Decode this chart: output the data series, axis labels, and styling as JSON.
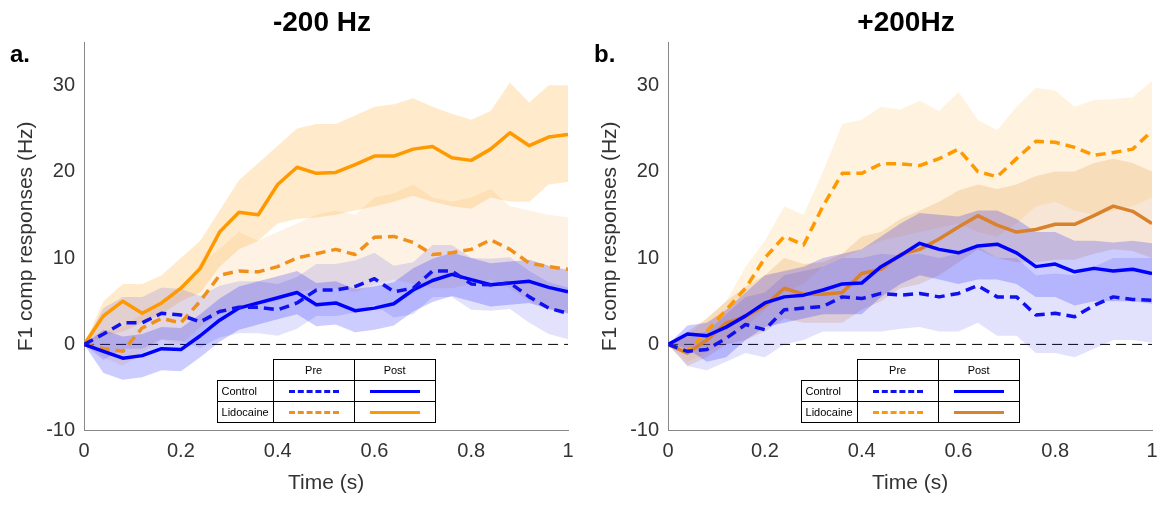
{
  "chart_data": [
    {
      "type": "line",
      "title": "-200 Hz",
      "xlabel": "Time (s)",
      "ylabel": "F1 comp responses (Hz)",
      "annotations": [
        "a.",
        "Pre",
        "Post",
        "Control",
        "Lidocaine"
      ],
      "xlim": [
        0,
        1
      ],
      "xticks": [
        0,
        0.2,
        0.4,
        0.6,
        0.8,
        1
      ],
      "ylim": [
        -10,
        35
      ],
      "yticks": [
        -10,
        0,
        10,
        20,
        30
      ],
      "grid": false,
      "marker": "none",
      "ref_lines": [
        {
          "axis": "y",
          "value": 0,
          "color": "#000000",
          "line_style": "dashed"
        }
      ],
      "x": [
        0,
        0.04,
        0.08,
        0.12,
        0.16,
        0.2,
        0.24,
        0.28,
        0.32,
        0.36,
        0.4,
        0.44,
        0.48,
        0.52,
        0.56,
        0.6,
        0.64,
        0.68,
        0.72,
        0.76,
        0.8,
        0.84,
        0.88,
        0.92,
        0.96,
        1
      ],
      "series": [
        {
          "color": "#1010f0",
          "line_style": "dashed",
          "values": [
            0,
            1.2,
            2.5,
            2.5,
            3.6,
            3.4,
            2.6,
            3.8,
            4.3,
            4.3,
            4,
            4.8,
            6.3,
            6.3,
            6.7,
            7.6,
            6.1,
            6.5,
            8.5,
            8.5,
            7,
            6.9,
            7.1,
            5.5,
            4.2,
            3.6
          ],
          "upper": [
            0,
            4.2,
            5.5,
            5.5,
            6.6,
            6.4,
            5.6,
            6.8,
            7.3,
            7.3,
            7,
            7.8,
            9.3,
            9.3,
            9.7,
            10.6,
            9.1,
            9.5,
            11.5,
            11.5,
            10,
            9.9,
            10.1,
            8.5,
            7.2,
            6.6
          ],
          "lower": [
            0,
            -1.8,
            -0.5,
            -0.5,
            0.6,
            0.4,
            -0.4,
            0.8,
            1.3,
            1.3,
            1,
            1.8,
            3.3,
            3.3,
            3.7,
            4.6,
            3.1,
            3.5,
            5.5,
            5.5,
            4,
            3.9,
            4.1,
            2.5,
            1.2,
            0.6
          ]
        },
        {
          "color": "#0000ff",
          "line_style": "solid",
          "values": [
            0,
            -0.8,
            -1.6,
            -1.3,
            -0.5,
            -0.6,
            1,
            2.8,
            4.2,
            4.8,
            5.4,
            6,
            4.6,
            4.8,
            3.9,
            4.2,
            4.7,
            6.3,
            7.4,
            8.1,
            7.5,
            6.9,
            7.1,
            7.3,
            6.6,
            6.1
          ],
          "upper": [
            0,
            1.7,
            0.9,
            1.2,
            2,
            1.9,
            3.5,
            5.3,
            6.7,
            7.3,
            7.9,
            8.5,
            7.1,
            7.3,
            6.4,
            6.7,
            7.2,
            8.8,
            9.9,
            10.6,
            10,
            9.4,
            9.6,
            9.8,
            9.1,
            8.6
          ],
          "lower": [
            0,
            -3.3,
            -4.1,
            -3.8,
            -3,
            -3.1,
            -1.5,
            0.3,
            1.7,
            2.3,
            2.9,
            3.5,
            2.1,
            2.3,
            1.4,
            1.7,
            2.2,
            3.8,
            4.9,
            5.6,
            5,
            4.4,
            4.6,
            4.8,
            4.1,
            3.6
          ]
        },
        {
          "color": "#f0901c",
          "line_style": "dashed",
          "values": [
            0,
            -0.5,
            -0.8,
            1.9,
            3,
            2.5,
            5,
            8,
            8.5,
            8.4,
            9,
            10,
            10.5,
            11,
            10.4,
            12.4,
            12.5,
            11.8,
            10.4,
            10.6,
            11,
            12.1,
            11,
            9.4,
            9,
            8.7
          ],
          "upper": [
            0,
            1.5,
            2,
            3.5,
            5,
            6,
            9.5,
            11,
            13,
            12,
            13,
            14,
            15,
            15.5,
            15,
            17,
            17.5,
            18.5,
            17,
            16.5,
            17,
            18,
            16,
            15.5,
            15,
            14.7
          ],
          "lower": [
            0,
            -1.5,
            -2.5,
            -1,
            0.5,
            0,
            2,
            3.5,
            4,
            4.5,
            5,
            6,
            6.5,
            6.5,
            6,
            7,
            7.5,
            7,
            6.5,
            6.5,
            7,
            7.5,
            6.5,
            5,
            4,
            3.5
          ]
        },
        {
          "color": "#ff9900",
          "line_style": "solid",
          "values": [
            0,
            3.3,
            5,
            3.6,
            4.8,
            6.5,
            8.8,
            13,
            15.3,
            15,
            18.5,
            20.5,
            19.8,
            19.9,
            20.8,
            21.8,
            21.8,
            22.6,
            22.9,
            21.6,
            21.3,
            22.6,
            24.5,
            23,
            24,
            24.3
          ],
          "upper": [
            0,
            5,
            7,
            7,
            8,
            10,
            12,
            15.5,
            19,
            21,
            23,
            25,
            25.5,
            25.5,
            26.5,
            27.5,
            27.8,
            28.5,
            27.5,
            26.7,
            26,
            27,
            30.3,
            28,
            30,
            30
          ],
          "lower": [
            0,
            1,
            1.5,
            2.5,
            3.5,
            5,
            6,
            9,
            11,
            12,
            14,
            14.5,
            14.7,
            15,
            15.5,
            16,
            16.5,
            17.2,
            16.5,
            16,
            15.7,
            17,
            16.5,
            16.5,
            18.5,
            18.8
          ]
        }
      ]
    },
    {
      "type": "line",
      "title": "+200Hz",
      "xlabel": "Time (s)",
      "ylabel": "F1 comp responses (Hz)",
      "annotations": [
        "b.",
        "Pre",
        "Post",
        "Control",
        "Lidocaine"
      ],
      "xlim": [
        0,
        1
      ],
      "xticks": [
        0,
        0.2,
        0.4,
        0.6,
        0.8,
        1
      ],
      "ylim": [
        -10,
        35
      ],
      "yticks": [
        -10,
        0,
        10,
        20,
        30
      ],
      "grid": false,
      "marker": "none",
      "ref_lines": [
        {
          "axis": "y",
          "value": 0,
          "color": "#000000",
          "line_style": "dashed"
        }
      ],
      "x": [
        0,
        0.04,
        0.08,
        0.12,
        0.16,
        0.2,
        0.24,
        0.28,
        0.32,
        0.36,
        0.4,
        0.44,
        0.48,
        0.52,
        0.56,
        0.6,
        0.64,
        0.68,
        0.72,
        0.76,
        0.8,
        0.84,
        0.88,
        0.92,
        0.96,
        1
      ],
      "series": [
        {
          "color": "#1010f0",
          "line_style": "dashed",
          "values": [
            0,
            -0.8,
            -0.6,
            0.7,
            2.3,
            1.7,
            4,
            4.2,
            4.4,
            5.5,
            5.3,
            5.9,
            5.7,
            5.9,
            5.5,
            5.9,
            6.8,
            5.5,
            5.5,
            3.4,
            3.6,
            3.2,
            4.5,
            5.5,
            5.2,
            5.1
          ],
          "upper": [
            0,
            1,
            1.5,
            3.5,
            5.5,
            6,
            8,
            8.5,
            9,
            10,
            10,
            10.5,
            10.3,
            10.5,
            10,
            10.5,
            11.3,
            10,
            10,
            8,
            8.2,
            8,
            9,
            10,
            10,
            10
          ],
          "lower": [
            0,
            -2.5,
            -3,
            -2,
            -1,
            -1.5,
            0,
            0.5,
            1.5,
            1.5,
            1.5,
            1.5,
            1.8,
            2,
            1.5,
            1.5,
            2.5,
            1,
            1,
            -1,
            -1,
            -1.5,
            -0.5,
            0.5,
            0.5,
            0.2
          ]
        },
        {
          "color": "#0000ff",
          "line_style": "solid",
          "values": [
            0,
            1.2,
            1,
            2,
            3.3,
            4.8,
            5.5,
            5.7,
            6.3,
            7,
            7.1,
            9,
            10.3,
            11.7,
            11,
            10.6,
            11.4,
            11.6,
            10.6,
            9,
            9.3,
            8.4,
            8.8,
            8.5,
            8.7,
            8.2
          ],
          "upper": [
            0,
            2.2,
            2.5,
            4,
            6,
            8,
            8.5,
            9,
            10,
            10.5,
            11,
            12.5,
            14,
            15.2,
            15,
            14.8,
            15.5,
            15.5,
            14.5,
            13,
            13,
            12,
            12,
            11.8,
            12,
            11.7
          ],
          "lower": [
            0,
            -0.5,
            -2,
            -1.5,
            0.5,
            2,
            2.5,
            3,
            3.5,
            3.5,
            3.5,
            5.5,
            7,
            8,
            7.5,
            7,
            7.5,
            7.5,
            7,
            5.5,
            5.5,
            4.5,
            5,
            5,
            5,
            4.7
          ]
        },
        {
          "color": "#ff9900",
          "line_style": "dashed",
          "values": [
            0,
            -0.8,
            1.5,
            4,
            6.5,
            10,
            12.5,
            11.5,
            16,
            19.8,
            19.8,
            20.9,
            20.9,
            20.7,
            21.5,
            22.6,
            20,
            19.4,
            21.5,
            23.5,
            23.4,
            22.8,
            21.9,
            22.2,
            22.6,
            24.7
          ],
          "upper": [
            0,
            1,
            3,
            5,
            9,
            12,
            16,
            15,
            20,
            25.5,
            26,
            27.5,
            27.2,
            28.2,
            27,
            29.2,
            26,
            24.8,
            27.5,
            29.7,
            29.4,
            27.5,
            28.3,
            28.4,
            28.6,
            30.5
          ],
          "lower": [
            0,
            -2,
            -1,
            0.5,
            2,
            4,
            6,
            7,
            9,
            10,
            11,
            12,
            12.5,
            13,
            13.5,
            14,
            13,
            12.5,
            14,
            16,
            16.5,
            15.5,
            15,
            15.5,
            16,
            17
          ]
        },
        {
          "color": "#d9822b",
          "line_style": "solid",
          "values": [
            0,
            -1,
            0.5,
            2.5,
            3.2,
            4.5,
            6.5,
            5.8,
            5.8,
            6,
            8.2,
            8.7,
            10.4,
            11,
            12.2,
            13.6,
            14.9,
            13.8,
            13,
            13.3,
            13.9,
            13.9,
            14.9,
            16,
            15.4,
            14
          ],
          "upper": [
            0,
            1.5,
            3,
            5,
            6.7,
            8,
            10,
            9.3,
            9.5,
            10.5,
            12.5,
            13,
            14.5,
            15.5,
            16.5,
            17.8,
            18.5,
            18,
            18.5,
            19.5,
            20,
            20,
            21,
            21.5,
            21,
            20
          ],
          "lower": [
            0,
            -2.5,
            -1.5,
            0,
            0.5,
            1.5,
            3,
            2.5,
            2.5,
            2.5,
            4,
            5,
            6.5,
            7,
            8,
            9.5,
            11,
            10,
            9.5,
            9.5,
            9.8,
            9.8,
            10.5,
            11,
            10.8,
            10
          ]
        }
      ]
    }
  ]
}
